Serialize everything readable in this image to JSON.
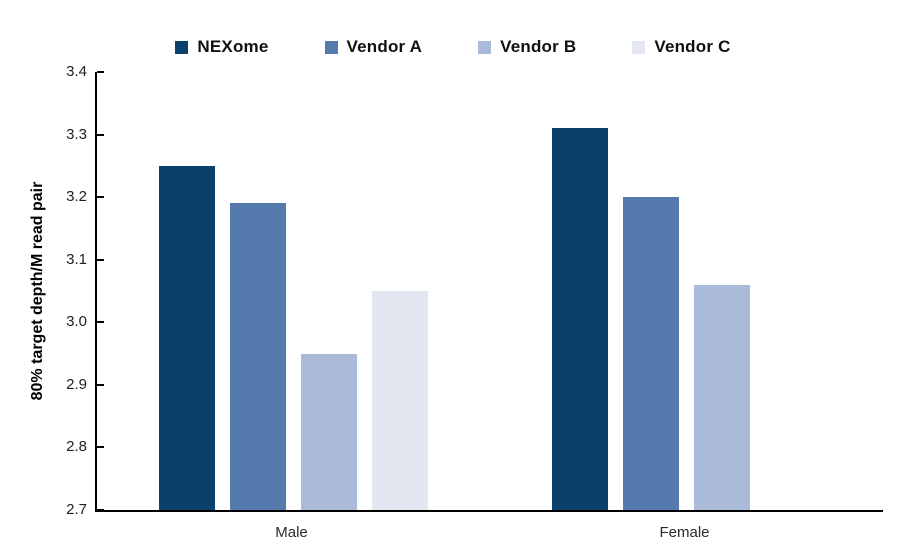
{
  "chart_data": {
    "type": "bar",
    "title": "",
    "categories": [
      "Male",
      "Female"
    ],
    "series": [
      {
        "name": "NEXome",
        "color": "#0a406b",
        "values": [
          3.25,
          3.31
        ]
      },
      {
        "name": "Vendor A",
        "color": "#567aad",
        "values": [
          3.19,
          3.2
        ]
      },
      {
        "name": "Vendor B",
        "color": "#a9bbd8",
        "values": [
          2.95,
          3.06
        ]
      },
      {
        "name": "Vendor C",
        "color": "#e2e7f1",
        "values": [
          3.05,
          null
        ]
      }
    ],
    "xlabel": "",
    "ylabel": "80% target depth/M read pair",
    "ylim": [
      2.7,
      3.4
    ],
    "ytick_step": 0.1,
    "ytick_labels": [
      "2.7",
      "2.8",
      "2.9",
      "3.0",
      "3.1",
      "3.2",
      "3.3",
      "3.4"
    ],
    "grid": false,
    "legend_position": "top",
    "axis_color": "#000000",
    "tick_label_color": "#1f1f1f"
  }
}
